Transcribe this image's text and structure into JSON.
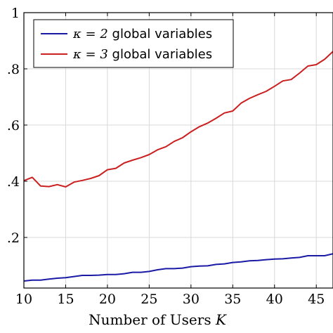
{
  "chart_data": {
    "type": "line",
    "title": "",
    "xlabel": "Number of Users",
    "xlabel_var": "K",
    "ylabel": "",
    "xlim": [
      10,
      47
    ],
    "ylim": [
      0.02,
      1.0
    ],
    "xticks": [
      10,
      15,
      20,
      25,
      30,
      35,
      40,
      45
    ],
    "yticks": [
      0.2,
      0.4,
      0.6,
      0.8,
      1.0
    ],
    "ytick_labels": [
      ".2",
      ".4",
      ".6",
      ".8",
      "1"
    ],
    "grid": true,
    "legend_position": "top-left",
    "x": [
      10,
      11,
      12,
      13,
      14,
      15,
      16,
      17,
      18,
      19,
      20,
      21,
      22,
      23,
      24,
      25,
      26,
      27,
      28,
      29,
      30,
      31,
      32,
      33,
      34,
      35,
      36,
      37,
      38,
      39,
      40,
      41,
      42,
      43,
      44,
      45,
      46,
      47
    ],
    "series": [
      {
        "name_prefix": "κ = 2",
        "name_suffix": "global variables",
        "color": "#1a1aa6",
        "values": [
          0.045,
          0.048,
          0.048,
          0.052,
          0.055,
          0.057,
          0.061,
          0.065,
          0.065,
          0.066,
          0.068,
          0.068,
          0.071,
          0.076,
          0.076,
          0.079,
          0.085,
          0.089,
          0.089,
          0.091,
          0.096,
          0.098,
          0.099,
          0.104,
          0.106,
          0.111,
          0.113,
          0.117,
          0.118,
          0.121,
          0.123,
          0.124,
          0.127,
          0.129,
          0.135,
          0.135,
          0.135,
          0.142
        ]
      },
      {
        "name_prefix": "κ = 3",
        "name_suffix": "global variables",
        "color": "#cc1f1f",
        "values": [
          0.402,
          0.414,
          0.383,
          0.381,
          0.388,
          0.38,
          0.397,
          0.403,
          0.41,
          0.42,
          0.441,
          0.446,
          0.465,
          0.475,
          0.484,
          0.495,
          0.512,
          0.523,
          0.542,
          0.555,
          0.576,
          0.594,
          0.607,
          0.624,
          0.643,
          0.65,
          0.678,
          0.695,
          0.708,
          0.72,
          0.738,
          0.757,
          0.762,
          0.785,
          0.81,
          0.815,
          0.834,
          0.862
        ]
      }
    ]
  }
}
